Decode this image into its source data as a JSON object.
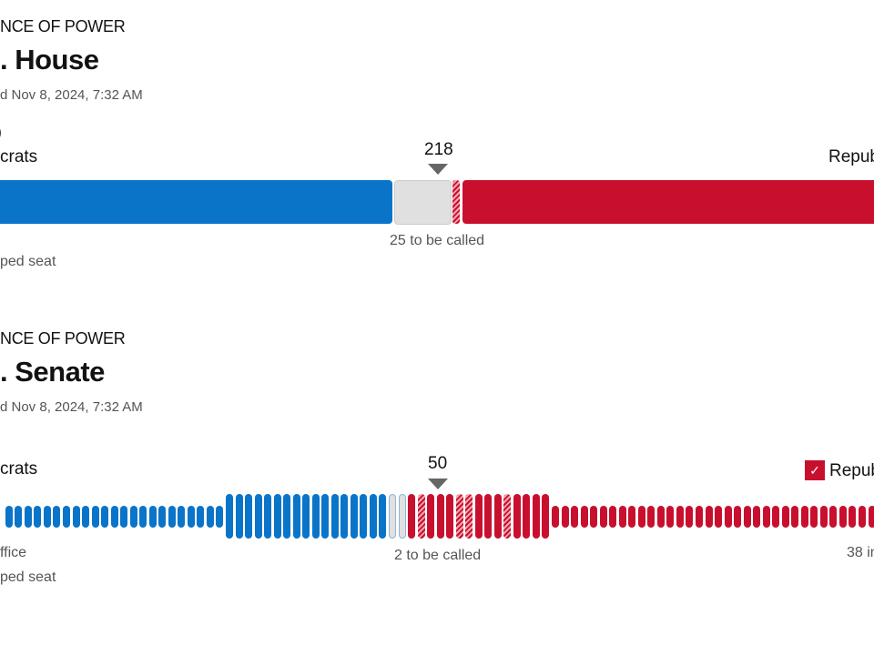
{
  "colors": {
    "dem": "#0a74c9",
    "rep": "#c8102e",
    "pending": "#e0e0e0",
    "hatch_light": "#f4a6b0"
  },
  "house": {
    "kicker": "NCE OF POWER",
    "title": ". House",
    "updated": "d  Nov 8, 2024, 7:32 AM",
    "dem_count": "0",
    "dem_label": "crats",
    "rep_label": "Repub",
    "majority": "218",
    "to_be_called": "25 to be called",
    "legend_flipped": "ped seat"
  },
  "senate": {
    "kicker": "NCE OF POWER",
    "title": ". Senate",
    "updated": "d  Nov 8, 2024, 7:32 AM",
    "dem_label": "crats",
    "rep_label": "Repub",
    "rep_check_icon": "checkmark-icon",
    "majority": "50",
    "to_be_called": "2 to be called",
    "legend_not_up": "ffice",
    "legend_flipped": "ped seat",
    "rep_not_up": "38 in",
    "seats": {
      "dem_not_up_visible": 23,
      "dem_up": 17,
      "pending": 2,
      "rep_up": 15,
      "rep_up_flipped_indices": [
        1,
        5,
        6,
        10
      ],
      "rep_not_up_visible": 34
    }
  }
}
